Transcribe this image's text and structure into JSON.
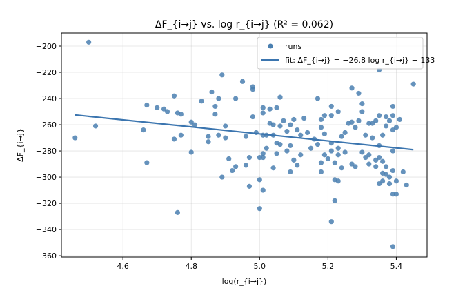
{
  "chart_data": {
    "type": "scatter",
    "title": "ΔF_{i→j} vs. log r_{i→j}  (R² = 0.062)",
    "xlabel": "log(r_{i→j})",
    "ylabel": "ΔF_{i→j}",
    "xlim": [
      4.42,
      5.49
    ],
    "ylim": [
      -361,
      -190
    ],
    "xticks": [
      4.6,
      4.8,
      5.0,
      5.2,
      5.4
    ],
    "yticks": [
      -360,
      -340,
      -320,
      -300,
      -280,
      -260,
      -240,
      -220,
      -200
    ],
    "grid": true,
    "legend": "top-right",
    "series": [
      {
        "name": "runs",
        "kind": "scatter",
        "color": "#4a7fb0",
        "points": [
          [
            4.46,
            -270
          ],
          [
            4.5,
            -197
          ],
          [
            4.52,
            -261
          ],
          [
            4.66,
            -264
          ],
          [
            4.67,
            -289
          ],
          [
            4.67,
            -245
          ],
          [
            4.7,
            -247
          ],
          [
            4.72,
            -248
          ],
          [
            4.73,
            -250
          ],
          [
            4.75,
            -238
          ],
          [
            4.75,
            -271
          ],
          [
            4.76,
            -251
          ],
          [
            4.77,
            -252
          ],
          [
            4.77,
            -268
          ],
          [
            4.76,
            -327
          ],
          [
            4.8,
            -258
          ],
          [
            4.8,
            -281
          ],
          [
            4.81,
            -260
          ],
          [
            4.83,
            -242
          ],
          [
            4.85,
            -273
          ],
          [
            4.85,
            -269
          ],
          [
            4.86,
            -235
          ],
          [
            4.87,
            -246
          ],
          [
            4.87,
            -252
          ],
          [
            4.88,
            -240
          ],
          [
            4.89,
            -222
          ],
          [
            4.88,
            -268
          ],
          [
            4.89,
            -300
          ],
          [
            4.9,
            -270
          ],
          [
            4.9,
            -261
          ],
          [
            4.91,
            -286
          ],
          [
            4.92,
            -295
          ],
          [
            4.93,
            -240
          ],
          [
            4.93,
            -292
          ],
          [
            4.95,
            -227
          ],
          [
            4.96,
            -269
          ],
          [
            4.96,
            -291
          ],
          [
            4.97,
            -285
          ],
          [
            4.97,
            -307
          ],
          [
            4.98,
            -231
          ],
          [
            4.98,
            -233
          ],
          [
            4.98,
            -254
          ],
          [
            4.99,
            -266
          ],
          [
            5.0,
            -302
          ],
          [
            5.0,
            -324
          ],
          [
            5.0,
            -285
          ],
          [
            5.01,
            -247
          ],
          [
            5.01,
            -251
          ],
          [
            5.01,
            -268
          ],
          [
            5.01,
            -282
          ],
          [
            5.01,
            -285
          ],
          [
            5.01,
            -310
          ],
          [
            5.02,
            -278
          ],
          [
            5.02,
            -268
          ],
          [
            5.03,
            -248
          ],
          [
            5.03,
            -259
          ],
          [
            5.04,
            -260
          ],
          [
            5.04,
            -268
          ],
          [
            5.04,
            -293
          ],
          [
            5.05,
            -247
          ],
          [
            5.05,
            -274
          ],
          [
            5.05,
            -282
          ],
          [
            5.06,
            -239
          ],
          [
            5.06,
            -261
          ],
          [
            5.06,
            -275
          ],
          [
            5.07,
            -257
          ],
          [
            5.08,
            -265
          ],
          [
            5.08,
            -280
          ],
          [
            5.09,
            -260
          ],
          [
            5.09,
            -276
          ],
          [
            5.09,
            -296
          ],
          [
            5.1,
            -256
          ],
          [
            5.1,
            -287
          ],
          [
            5.11,
            -264
          ],
          [
            5.11,
            -291
          ],
          [
            5.12,
            -268
          ],
          [
            5.12,
            -283
          ],
          [
            5.13,
            -255
          ],
          [
            5.14,
            -266
          ],
          [
            5.15,
            -278
          ],
          [
            5.16,
            -271
          ],
          [
            5.17,
            -240
          ],
          [
            5.17,
            -275
          ],
          [
            5.18,
            -256
          ],
          [
            5.18,
            -262
          ],
          [
            5.18,
            -289
          ],
          [
            5.18,
            -296
          ],
          [
            5.19,
            -253
          ],
          [
            5.19,
            -267
          ],
          [
            5.19,
            -283
          ],
          [
            5.2,
            -286
          ],
          [
            5.21,
            -246
          ],
          [
            5.21,
            -253
          ],
          [
            5.21,
            -274
          ],
          [
            5.21,
            -280
          ],
          [
            5.21,
            -334
          ],
          [
            5.22,
            -289
          ],
          [
            5.22,
            -302
          ],
          [
            5.22,
            -318
          ],
          [
            5.23,
            -250
          ],
          [
            5.23,
            -278
          ],
          [
            5.23,
            -283
          ],
          [
            5.23,
            -303
          ],
          [
            5.24,
            -269
          ],
          [
            5.24,
            -293
          ],
          [
            5.25,
            -266
          ],
          [
            5.25,
            -281
          ],
          [
            5.26,
            -259
          ],
          [
            5.27,
            -232
          ],
          [
            5.27,
            -258
          ],
          [
            5.27,
            -290
          ],
          [
            5.28,
            -262
          ],
          [
            5.28,
            -292
          ],
          [
            5.29,
            -257
          ],
          [
            5.29,
            -236
          ],
          [
            5.3,
            -244
          ],
          [
            5.3,
            -250
          ],
          [
            5.3,
            -281
          ],
          [
            5.31,
            -285
          ],
          [
            5.31,
            -268
          ],
          [
            5.32,
            -259
          ],
          [
            5.32,
            -290
          ],
          [
            5.32,
            -283
          ],
          [
            5.33,
            -259
          ],
          [
            5.33,
            -270
          ],
          [
            5.34,
            -257
          ],
          [
            5.34,
            -287
          ],
          [
            5.34,
            -292
          ],
          [
            5.35,
            -218
          ],
          [
            5.35,
            -253
          ],
          [
            5.35,
            -276
          ],
          [
            5.35,
            -285
          ],
          [
            5.35,
            -305
          ],
          [
            5.36,
            -268
          ],
          [
            5.36,
            -288
          ],
          [
            5.36,
            -297
          ],
          [
            5.36,
            -303
          ],
          [
            5.37,
            -254
          ],
          [
            5.37,
            -261
          ],
          [
            5.37,
            -292
          ],
          [
            5.37,
            -298
          ],
          [
            5.38,
            -257
          ],
          [
            5.38,
            -300
          ],
          [
            5.38,
            -305
          ],
          [
            5.39,
            -246
          ],
          [
            5.39,
            -253
          ],
          [
            5.39,
            -264
          ],
          [
            5.39,
            -280
          ],
          [
            5.39,
            -295
          ],
          [
            5.39,
            -313
          ],
          [
            5.39,
            -353
          ],
          [
            5.4,
            -262
          ],
          [
            5.4,
            -313
          ],
          [
            5.4,
            -303
          ],
          [
            5.41,
            -256
          ],
          [
            5.42,
            -296
          ],
          [
            5.43,
            -306
          ],
          [
            5.45,
            -229
          ]
        ]
      },
      {
        "name": "fit: ΔF_{i→j} = −26.8 log r_{i→j} − 133",
        "kind": "line",
        "color": "#3b75af",
        "slope": -26.8,
        "intercept": -133,
        "x": [
          4.46,
          5.45
        ]
      }
    ]
  }
}
